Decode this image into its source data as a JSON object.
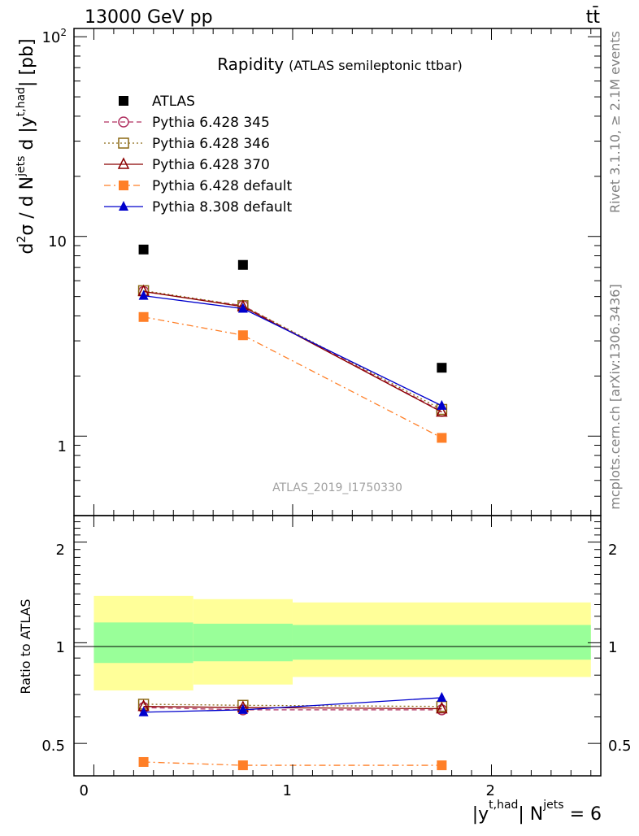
{
  "header": {
    "left_label": "13000 GeV pp",
    "right_label": "tt̄"
  },
  "side_text": {
    "rivet": "Rivet 3.1.10, ≥ 2.1M events",
    "mcplots": "mcplots.cern.ch [arXiv:1306.3436]"
  },
  "chart_data": [
    {
      "type": "scatter",
      "panel": "main",
      "title": "Rapidity",
      "subtitle": "(ATLAS semileptonic ttbar)",
      "watermark": "ATLAS_2019_I1750330",
      "ylabel": "d²σ / d Nʲᵉᵗˢ d |yᵗ,ʰᵃᵈ| [pb]",
      "ylabel_parts": {
        "d2": "d",
        "sup2": "2",
        "sigma": "σ / d N",
        "jets": "jets",
        "d_y": " d |y",
        "thad": "t,had",
        "pb": "| [pb]"
      },
      "yscale": "log",
      "ylim": [
        0.4,
        110
      ],
      "xlim": [
        -0.1,
        2.55
      ],
      "y_tick_labels": {
        "t1": "1",
        "t10": "10",
        "t100_base": "10",
        "t100_exp": "2"
      },
      "legend_position": "top-left",
      "x": [
        0.25,
        0.75,
        1.75
      ],
      "series": [
        {
          "name": "ATLAS",
          "values": [
            8.6,
            7.2,
            2.2
          ],
          "color": "#000000",
          "marker": "filled-square"
        },
        {
          "name": "Pythia 6.428 345",
          "values": [
            5.3,
            4.5,
            1.33
          ],
          "color": "#b03060",
          "marker": "open-circle",
          "line": "dashed"
        },
        {
          "name": "Pythia 6.428 346",
          "values": [
            5.35,
            4.5,
            1.36
          ],
          "color": "#8b6914",
          "marker": "open-square",
          "line": "dotted"
        },
        {
          "name": "Pythia 6.428 370",
          "values": [
            5.3,
            4.45,
            1.32
          ],
          "color": "#8b0000",
          "marker": "open-triangle",
          "line": "solid"
        },
        {
          "name": "Pythia 6.428 default",
          "values": [
            3.95,
            3.2,
            0.98
          ],
          "color": "#ff7f27",
          "marker": "filled-square",
          "line": "dashdot"
        },
        {
          "name": "Pythia 8.308 default",
          "values": [
            5.05,
            4.35,
            1.42
          ],
          "color": "#0000cc",
          "marker": "filled-triangle",
          "line": "solid"
        }
      ]
    },
    {
      "type": "scatter",
      "panel": "ratio",
      "ylabel": "Ratio to ATLAS",
      "xlabel_parts": {
        "y": "|y",
        "thad": "t,had",
        "n": "| N",
        "jets": "jets",
        "eq": " = 6"
      },
      "yscale": "log",
      "ylim": [
        0.4,
        2.4
      ],
      "xlim": [
        -0.1,
        2.55
      ],
      "x_tick_labels": [
        "0",
        "1",
        "2"
      ],
      "y_tick_labels": [
        "0.5",
        "1",
        "2"
      ],
      "x": [
        0.25,
        0.75,
        1.75
      ],
      "bands": {
        "bins": [
          [
            0.0,
            0.5
          ],
          [
            0.5,
            1.0
          ],
          [
            1.0,
            2.5
          ]
        ],
        "yellow": [
          [
            0.72,
            1.38
          ],
          [
            0.75,
            1.35
          ],
          [
            0.79,
            1.32
          ]
        ],
        "green": [
          [
            0.87,
            1.15
          ],
          [
            0.88,
            1.14
          ],
          [
            0.89,
            1.13
          ]
        ],
        "yellow_color": "#ffff99",
        "green_color": "#99ff99"
      },
      "series": [
        {
          "name": "Pythia 6.428 345",
          "values": [
            0.64,
            0.63,
            0.63
          ],
          "color": "#b03060",
          "line": "dashed"
        },
        {
          "name": "Pythia 6.428 346",
          "values": [
            0.655,
            0.65,
            0.645
          ],
          "color": "#8b6914",
          "line": "dotted"
        },
        {
          "name": "Pythia 6.428 370",
          "values": [
            0.645,
            0.64,
            0.635
          ],
          "color": "#8b0000",
          "line": "solid"
        },
        {
          "name": "Pythia 6.428 default",
          "values": [
            0.44,
            0.43,
            0.43
          ],
          "color": "#ff7f27",
          "line": "dashdot"
        },
        {
          "name": "Pythia 8.308 default",
          "values": [
            0.62,
            0.63,
            0.685
          ],
          "color": "#0000cc",
          "line": "solid"
        }
      ]
    }
  ]
}
